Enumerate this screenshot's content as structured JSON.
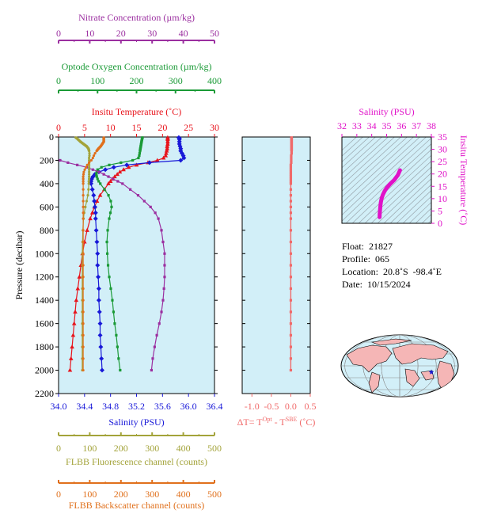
{
  "info": {
    "float": "Float:  21827",
    "profile": "Profile:  065",
    "location": "Location:  20.8˚S  -98.4˚E",
    "date": "Date:  10/15/2024"
  },
  "axes": {
    "nitrate": {
      "label": "Nitrate Concentration (µm/kg)",
      "ticks": [
        "0",
        "10",
        "20",
        "30",
        "40",
        "50"
      ],
      "color": "#9b2fa0"
    },
    "oxygen": {
      "label": "Optode Oxygen Concentration (µm/kg)",
      "ticks": [
        "0",
        "100",
        "200",
        "300",
        "400"
      ],
      "color": "#1a9a36"
    },
    "temperature": {
      "label": "Insitu Temperature (˚C)",
      "ticks": [
        "0",
        "5",
        "10",
        "15",
        "20",
        "25",
        "30"
      ],
      "color": "#e8141c"
    },
    "pressure": {
      "label": "Pressure (decibar)",
      "ticks": [
        "0",
        "200",
        "400",
        "600",
        "800",
        "1000",
        "1200",
        "1400",
        "1600",
        "1800",
        "2000",
        "2200"
      ]
    },
    "salinity": {
      "label": "Salinity (PSU)",
      "ticks": [
        "34.0",
        "34.4",
        "34.8",
        "35.2",
        "35.6",
        "36.0",
        "36.4"
      ],
      "color": "#1818d8"
    },
    "fluorescence": {
      "label": "FLBB Fluorescence channel (counts)",
      "ticks": [
        "0",
        "100",
        "200",
        "300",
        "400",
        "500"
      ],
      "color": "#a3a33a"
    },
    "backscatter": {
      "label": "FLBB Backscatter channel (counts)",
      "ticks": [
        "0",
        "100",
        "200",
        "300",
        "400",
        "500"
      ],
      "color": "#e0701c"
    },
    "deltaT": {
      "label": "ΔT= T",
      "sup1": "Opt",
      "mid": " - T",
      "sup2": "SBE",
      "unit": " (˚C)",
      "ticks": [
        "-1.0",
        "-0.5",
        "0.0",
        "0.5"
      ],
      "color": "#f06a6a"
    },
    "ts_salinity": {
      "label": "Salinity (PSU)",
      "ticks": [
        "32",
        "33",
        "34",
        "35",
        "36",
        "37",
        "38"
      ],
      "color": "#e012c8"
    },
    "ts_temperature": {
      "label": "Insitu Temperature (˚C)",
      "ticks": [
        "0",
        "5",
        "10",
        "15",
        "20",
        "25",
        "30",
        "35"
      ],
      "color": "#e012c8"
    }
  },
  "chart_data": [
    {
      "type": "line",
      "y_name": "pressure",
      "ylim": [
        0,
        2200
      ],
      "series": [
        {
          "key": "temperature",
          "xlim": [
            0,
            30
          ],
          "color": "#e8141c",
          "marker": "triangle",
          "p": [
            5,
            10,
            20,
            40,
            60,
            80,
            100,
            120,
            140,
            160,
            180,
            200,
            220,
            240,
            260,
            280,
            300,
            320,
            340,
            360,
            380,
            400,
            450,
            500,
            550,
            600,
            650,
            700,
            800,
            900,
            1000,
            1100,
            1200,
            1300,
            1400,
            1500,
            1600,
            1700,
            1800,
            1900,
            2000
          ],
          "v": [
            21.0,
            21.0,
            21.0,
            21.0,
            21.0,
            20.9,
            20.9,
            20.8,
            20.7,
            20.6,
            20.2,
            19.0,
            17.2,
            15.0,
            13.5,
            12.5,
            11.8,
            11.3,
            10.8,
            10.4,
            10.0,
            9.6,
            8.8,
            8.0,
            7.4,
            6.9,
            6.5,
            6.1,
            5.5,
            5.0,
            4.6,
            4.3,
            4.0,
            3.7,
            3.4,
            3.2,
            3.0,
            2.8,
            2.6,
            2.4,
            2.2
          ]
        },
        {
          "key": "salinity",
          "xlim": [
            34.0,
            36.4
          ],
          "color": "#1818d8",
          "marker": "diamond",
          "p": [
            5,
            10,
            20,
            40,
            60,
            80,
            100,
            120,
            140,
            160,
            180,
            200,
            220,
            240,
            260,
            280,
            300,
            320,
            340,
            360,
            380,
            400,
            450,
            500,
            550,
            600,
            650,
            700,
            800,
            900,
            1000,
            1100,
            1200,
            1300,
            1400,
            1500,
            1600,
            1700,
            1800,
            1900,
            2000
          ],
          "v": [
            35.85,
            35.86,
            35.86,
            35.86,
            35.86,
            35.87,
            35.88,
            35.88,
            35.9,
            35.92,
            35.93,
            35.88,
            35.4,
            35.05,
            34.85,
            34.72,
            34.62,
            34.56,
            34.53,
            34.51,
            34.5,
            34.5,
            34.52,
            34.54,
            34.55,
            34.56,
            34.57,
            34.57,
            34.58,
            34.59,
            34.6,
            34.6,
            34.61,
            34.62,
            34.62,
            34.63,
            34.64,
            34.64,
            34.65,
            34.66,
            34.67
          ]
        },
        {
          "key": "oxygen",
          "xlim": [
            0,
            400
          ],
          "color": "#1a9a36",
          "marker": "square",
          "p": [
            5,
            10,
            20,
            40,
            60,
            80,
            100,
            120,
            140,
            160,
            180,
            200,
            220,
            240,
            260,
            280,
            300,
            320,
            340,
            360,
            380,
            400,
            450,
            500,
            550,
            600,
            650,
            700,
            800,
            900,
            1000,
            1100,
            1200,
            1300,
            1400,
            1500,
            1600,
            1700,
            1800,
            1900,
            2000
          ],
          "v": [
            215,
            215,
            214,
            213,
            212,
            211,
            210,
            209,
            208,
            207,
            205,
            190,
            160,
            130,
            110,
            100,
            98,
            97,
            98,
            100,
            103,
            107,
            118,
            128,
            134,
            136,
            133,
            130,
            126,
            124,
            125,
            127,
            130,
            134,
            138,
            141,
            144,
            148,
            151,
            154,
            158
          ]
        },
        {
          "key": "nitrate",
          "xlim": [
            0,
            50
          ],
          "color": "#9b2fa0",
          "marker": "square",
          "p": [
            200,
            220,
            240,
            260,
            280,
            300,
            320,
            340,
            360,
            380,
            400,
            450,
            500,
            550,
            600,
            650,
            700,
            800,
            900,
            1000,
            1100,
            1200,
            1300,
            1400,
            1500,
            1600,
            1700,
            1800,
            1900,
            2000
          ],
          "v": [
            0.5,
            3,
            6,
            9,
            11,
            13,
            14.5,
            16,
            17.5,
            19,
            20.5,
            23,
            25.5,
            27.5,
            29.5,
            31,
            32,
            33,
            33.5,
            34,
            34,
            34,
            33.8,
            33.5,
            33,
            32.3,
            31.5,
            30.8,
            30.2,
            29.8
          ]
        },
        {
          "key": "fluorescence",
          "xlim": [
            0,
            500
          ],
          "color": "#a3a33a",
          "marker": "dot",
          "p": [
            5,
            10,
            20,
            40,
            60,
            80,
            100,
            120,
            140,
            160,
            180,
            200,
            220,
            240,
            260,
            280,
            300,
            320,
            340,
            360,
            380,
            400,
            450,
            500,
            550,
            600,
            650,
            700,
            800,
            900,
            1000,
            1100,
            1200,
            1300,
            1400,
            1500,
            1600,
            1700,
            1800,
            1900,
            2000
          ],
          "v": [
            55,
            58,
            62,
            70,
            80,
            90,
            96,
            98,
            99,
            99,
            98,
            98,
            98,
            98,
            98,
            98,
            98,
            98,
            98,
            98,
            97,
            97,
            96,
            94,
            90,
            86,
            82,
            80,
            78,
            77,
            76,
            76,
            76,
            76,
            76,
            76,
            76,
            76,
            76,
            76,
            76
          ]
        },
        {
          "key": "backscatter",
          "xlim": [
            0,
            500
          ],
          "color": "#e0701c",
          "marker": "dot",
          "p": [
            5,
            10,
            20,
            40,
            60,
            80,
            100,
            120,
            140,
            160,
            180,
            200,
            220,
            240,
            260,
            280,
            300,
            320,
            340,
            360,
            380,
            400,
            450,
            500,
            550,
            600,
            650,
            700,
            800,
            900,
            1000,
            1100,
            1200,
            1300,
            1400,
            1500,
            1600,
            1700,
            1800,
            1900,
            2000
          ],
          "v": [
            145,
            145,
            145,
            145,
            140,
            135,
            128,
            122,
            117,
            113,
            110,
            105,
            98,
            92,
            88,
            84,
            81,
            80,
            79,
            79,
            79,
            79,
            79,
            79,
            79,
            79,
            79,
            79,
            79,
            79,
            79,
            79,
            79,
            79,
            79,
            79,
            79,
            79,
            79,
            79,
            79
          ]
        }
      ]
    },
    {
      "type": "line",
      "y_name": "pressure",
      "ylim": [
        0,
        2200
      ],
      "xlim": [
        -1.25,
        0.5
      ],
      "series": [
        {
          "key": "deltaT",
          "color": "#f06a6a",
          "marker": "square",
          "p": [
            5,
            10,
            20,
            40,
            60,
            80,
            100,
            120,
            140,
            160,
            180,
            200,
            220,
            240,
            260,
            280,
            300,
            320,
            340,
            360,
            380,
            400,
            450,
            500,
            550,
            600,
            650,
            700,
            800,
            900,
            1000,
            1100,
            1200,
            1300,
            1400,
            1500,
            1600,
            1700,
            1800,
            1900,
            2000
          ],
          "v": [
            0.02,
            0.02,
            0.02,
            0.02,
            0.02,
            0.02,
            0.02,
            0.02,
            0.02,
            0.01,
            0.01,
            0.01,
            0.01,
            0.0,
            0.0,
            0.0,
            0.0,
            0.0,
            0.0,
            0.0,
            0.0,
            0.0,
            0.0,
            0.0,
            0.0,
            0.0,
            0.0,
            0.0,
            0.0,
            0.0,
            0.0,
            0.0,
            0.0,
            0.0,
            0.0,
            0.0,
            0.0,
            0.0,
            0.0,
            0.0,
            0.0
          ]
        }
      ]
    },
    {
      "type": "scatter",
      "name": "ts-diagram",
      "xlim": [
        32,
        38
      ],
      "ylim": [
        0,
        35
      ],
      "series": [
        {
          "key": "ts",
          "color": "#e012c8",
          "s": [
            34.53,
            34.54,
            34.56,
            34.58,
            34.61,
            34.66,
            34.74,
            34.86,
            35.02,
            35.24,
            35.5,
            35.75,
            35.9
          ],
          "t": [
            2.5,
            4.0,
            5.5,
            7.0,
            8.5,
            10.0,
            11.5,
            13.0,
            14.5,
            16.0,
            17.5,
            19.5,
            21.5
          ]
        }
      ]
    }
  ]
}
